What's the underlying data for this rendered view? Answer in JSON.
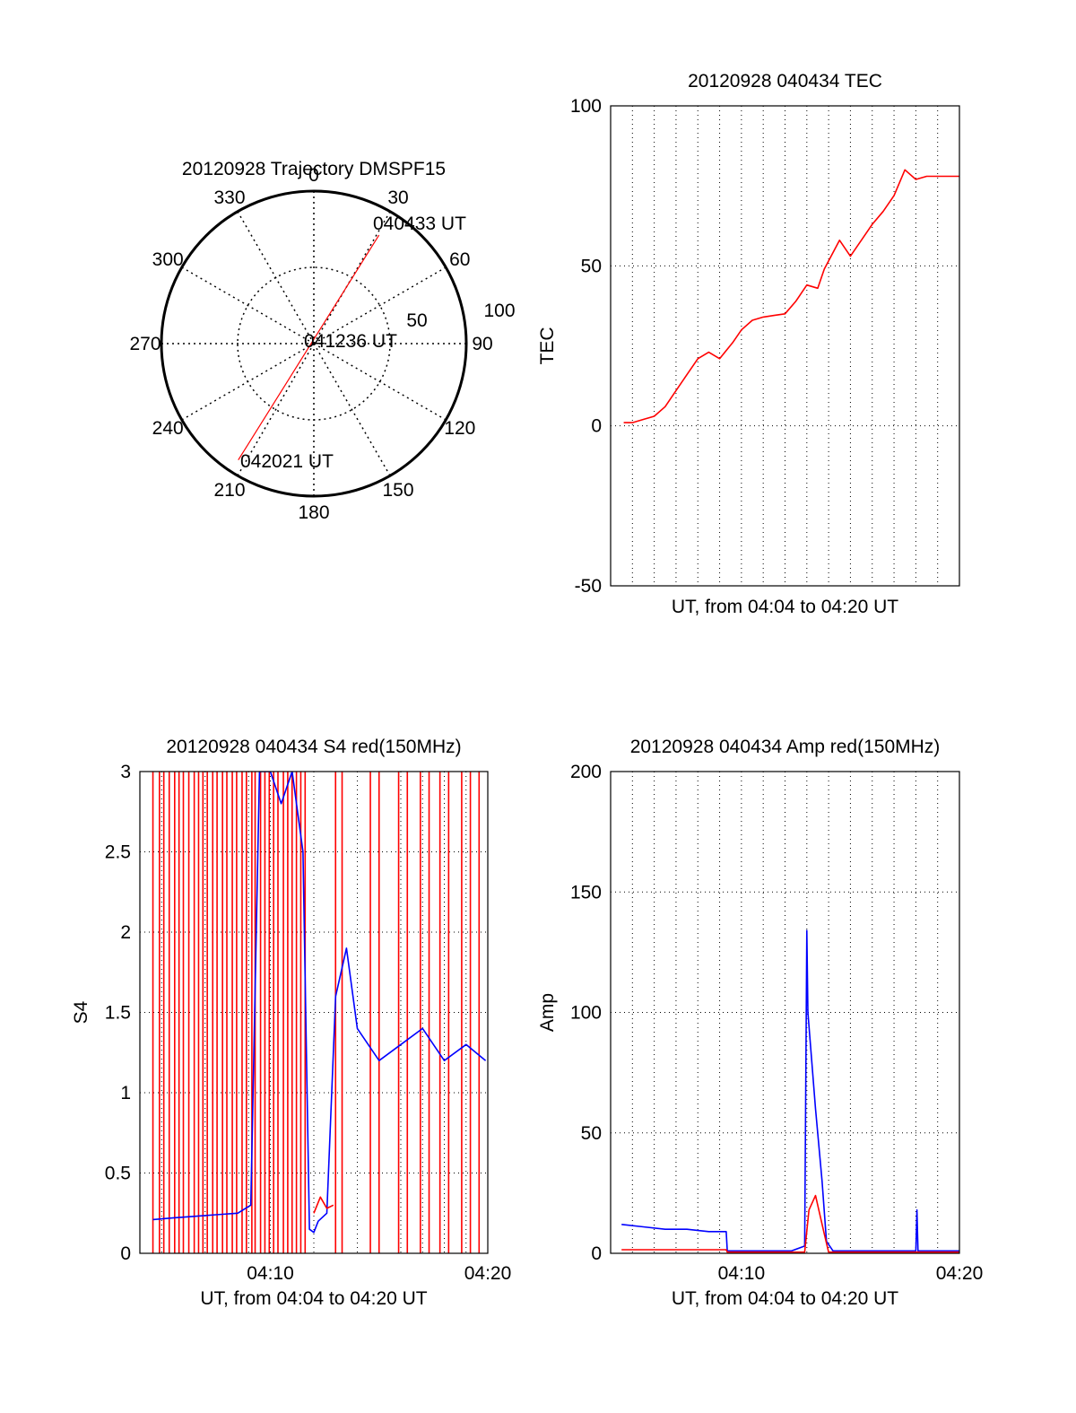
{
  "colors": {
    "red": "#ff0000",
    "blue": "#0000ff",
    "axis": "#000000"
  },
  "chart_data": [
    {
      "id": "trajectory",
      "type": "polar-trajectory",
      "title": "20120928 Trajectory DMSPF15",
      "azimuth_labels": [
        "0",
        "30",
        "60",
        "90",
        "120",
        "150",
        "180",
        "210",
        "240",
        "270",
        "300",
        "330"
      ],
      "ring_labels": [
        "50",
        "100"
      ],
      "elevation_range": [
        0,
        100
      ],
      "track": {
        "color": "#ff0000",
        "points": [
          {
            "az": 31,
            "r": 83
          },
          {
            "az": 213,
            "r": 91
          }
        ]
      },
      "labels": [
        "040433 UT",
        "041236 UT",
        "042021 UT"
      ]
    },
    {
      "id": "tec",
      "type": "line",
      "title": "20120928 040434 TEC",
      "ylabel": "TEC",
      "xlabel": "UT, from 04:04 to 04:20 UT",
      "ylim": [
        -50,
        100
      ],
      "yticks": [
        "-50",
        "0",
        "50",
        "100"
      ],
      "xticks": [],
      "grid": true,
      "xrange_min": [
        4.0,
        20.0
      ],
      "series": [
        {
          "color": "#ff0000",
          "x": [
            4.6,
            5.0,
            5.5,
            6.0,
            6.5,
            7.0,
            7.5,
            8.0,
            8.5,
            9.0,
            9.6,
            10.0,
            10.5,
            11.0,
            11.5,
            12.0,
            12.5,
            13.0,
            13.5,
            13.8,
            14.5,
            15.0,
            15.5,
            16.0,
            16.5,
            17.0,
            17.5,
            18.0,
            18.5,
            19.0,
            19.5,
            20.0
          ],
          "y": [
            1,
            1,
            2,
            3,
            6,
            11,
            16,
            21,
            23,
            21,
            26,
            30,
            33,
            34,
            34.5,
            35,
            39,
            44,
            43,
            49,
            58,
            53,
            58,
            63,
            67,
            72,
            80,
            77,
            78,
            78,
            78,
            78
          ]
        }
      ]
    },
    {
      "id": "s4",
      "type": "line",
      "title": "20120928 040434 S4 red(150MHz)",
      "ylabel": "S4",
      "xlabel": "UT, from 04:04 to 04:20 UT",
      "ylim": [
        0,
        3
      ],
      "yticks": [
        "0",
        "0.5",
        "1",
        "1.5",
        "2",
        "2.5",
        "3"
      ],
      "xticks": [
        "04:10",
        "04:20"
      ],
      "grid": true,
      "xrange_min": [
        4.0,
        20.0
      ],
      "series": [
        {
          "color": "#0000ff",
          "x": [
            4.6,
            5.5,
            6.5,
            7.5,
            8.5,
            9.1,
            9.5,
            10.0,
            10.5,
            11.0,
            11.5,
            11.8,
            12.0,
            12.2,
            12.6,
            13.0,
            13.5,
            14.0,
            15.0,
            16.0,
            17.0,
            18.0,
            19.0,
            19.9
          ],
          "y": [
            0.21,
            0.22,
            0.23,
            0.24,
            0.25,
            0.3,
            3,
            3,
            2.8,
            3,
            2.5,
            0.15,
            0.13,
            0.2,
            0.25,
            1.6,
            1.9,
            1.4,
            1.2,
            1.3,
            1.4,
            1.2,
            1.3,
            1.2
          ]
        },
        {
          "color": "#ff0000",
          "x": [
            12.0,
            12.3,
            12.6,
            12.9
          ],
          "y": [
            0.25,
            0.35,
            0.28,
            0.3
          ]
        }
      ],
      "red_spike_times": [
        4.6,
        4.9,
        5.1,
        5.35,
        5.6,
        5.8,
        6.0,
        6.25,
        6.5,
        6.7,
        6.9,
        7.1,
        7.35,
        7.55,
        7.8,
        8.0,
        8.25,
        8.45,
        8.7,
        8.9,
        9.15,
        9.3,
        9.55,
        9.75,
        9.95,
        10.15,
        10.35,
        10.6,
        10.8,
        11.0,
        11.2,
        11.4,
        11.6,
        13.0,
        13.3,
        14.6,
        15.0,
        15.9,
        16.3,
        16.9,
        17.3,
        17.8,
        18.2,
        18.8,
        19.2,
        19.6
      ]
    },
    {
      "id": "amp",
      "type": "line",
      "title": "20120928 040434 Amp red(150MHz)",
      "ylabel": "Amp",
      "xlabel": "UT, from 04:04 to 04:20 UT",
      "ylim": [
        0,
        200
      ],
      "yticks": [
        "0",
        "50",
        "100",
        "150",
        "200"
      ],
      "xticks": [
        "04:10",
        "04:20"
      ],
      "grid": true,
      "xrange_min": [
        4.0,
        20.0
      ],
      "series": [
        {
          "color": "#0000ff",
          "x": [
            4.5,
            5.5,
            6.5,
            7.5,
            8.5,
            9.3,
            9.35,
            10.5,
            11.5,
            12.3,
            12.9,
            13.0,
            13.05,
            13.4,
            13.7,
            13.9,
            14.2,
            15.0,
            16.0,
            17.0,
            18.0,
            18.05,
            18.1,
            19.0,
            20.0
          ],
          "y": [
            12,
            11,
            10,
            10,
            9,
            9,
            1,
            1,
            1,
            1,
            3,
            134,
            100,
            60,
            30,
            5,
            1,
            1,
            1,
            1,
            1,
            18,
            1,
            1,
            1
          ]
        },
        {
          "color": "#ff0000",
          "x": [
            4.5,
            9.3,
            9.35,
            12.9,
            13.1,
            13.4,
            13.8,
            14.0,
            20.0
          ],
          "y": [
            1.5,
            1.5,
            0.5,
            0.5,
            18,
            24,
            8,
            0.5,
            0.5
          ]
        }
      ]
    }
  ]
}
